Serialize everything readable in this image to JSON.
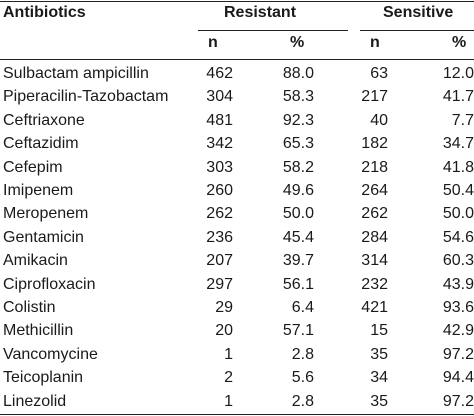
{
  "table": {
    "header": {
      "col_label": "Antibiotics",
      "resistant": "Resistant",
      "sensitive": "Sensitive",
      "n": "n",
      "pct": "%"
    },
    "rows": [
      {
        "name": "Sulbactam ampicillin",
        "r_n": "462",
        "r_pct": "88.0",
        "s_n": "63",
        "s_pct": "12.0"
      },
      {
        "name": "Piperacilin-Tazobactam",
        "r_n": "304",
        "r_pct": "58.3",
        "s_n": "217",
        "s_pct": "41.7"
      },
      {
        "name": "Ceftriaxone",
        "r_n": "481",
        "r_pct": "92.3",
        "s_n": "40",
        "s_pct": "7.7"
      },
      {
        "name": "Ceftazidim",
        "r_n": "342",
        "r_pct": "65.3",
        "s_n": "182",
        "s_pct": "34.7"
      },
      {
        "name": "Cefepim",
        "r_n": "303",
        "r_pct": "58.2",
        "s_n": "218",
        "s_pct": "41.8"
      },
      {
        "name": "Imipenem",
        "r_n": "260",
        "r_pct": "49.6",
        "s_n": "264",
        "s_pct": "50.4"
      },
      {
        "name": "Meropenem",
        "r_n": "262",
        "r_pct": "50.0",
        "s_n": "262",
        "s_pct": "50.0"
      },
      {
        "name": "Gentamicin",
        "r_n": "236",
        "r_pct": "45.4",
        "s_n": "284",
        "s_pct": "54.6"
      },
      {
        "name": "Amikacin",
        "r_n": "207",
        "r_pct": "39.7",
        "s_n": "314",
        "s_pct": "60.3"
      },
      {
        "name": "Ciprofloxacin",
        "r_n": "297",
        "r_pct": "56.1",
        "s_n": "232",
        "s_pct": "43.9"
      },
      {
        "name": "Colistin",
        "r_n": "29",
        "r_pct": "6.4",
        "s_n": "421",
        "s_pct": "93.6"
      },
      {
        "name": "Methicillin",
        "r_n": "20",
        "r_pct": "57.1",
        "s_n": "15",
        "s_pct": "42.9"
      },
      {
        "name": "Vancomycine",
        "r_n": "1",
        "r_pct": "2.8",
        "s_n": "35",
        "s_pct": "97.2"
      },
      {
        "name": "Teicoplanin",
        "r_n": "2",
        "r_pct": "5.6",
        "s_n": "34",
        "s_pct": "94.4"
      },
      {
        "name": "Linezolid",
        "r_n": "1",
        "r_pct": "2.8",
        "s_n": "35",
        "s_pct": "97.2"
      }
    ]
  }
}
